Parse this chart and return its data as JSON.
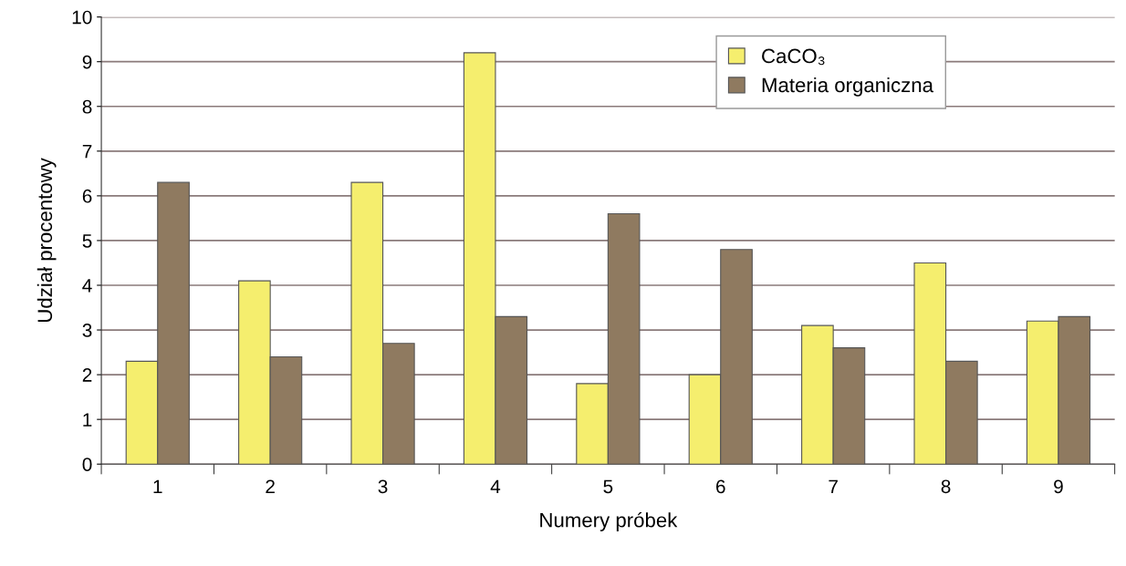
{
  "chart_data": {
    "type": "bar",
    "xlabel": "Numery próbek",
    "ylabel": "Udział procentowy",
    "categories": [
      "1",
      "2",
      "3",
      "4",
      "5",
      "6",
      "7",
      "8",
      "9"
    ],
    "series": [
      {
        "name": "CaCO₃",
        "color": "#f5ee6e",
        "values": [
          2.3,
          4.1,
          6.3,
          9.2,
          1.8,
          2.0,
          3.1,
          4.5,
          3.2
        ]
      },
      {
        "name": "Materia organiczna",
        "color": "#8f7a60",
        "values": [
          6.3,
          2.4,
          2.7,
          3.3,
          5.6,
          4.8,
          2.6,
          2.3,
          3.3
        ]
      }
    ],
    "ylim": [
      0,
      10
    ],
    "yticks": [
      0,
      1,
      2,
      3,
      4,
      5,
      6,
      7,
      8,
      9,
      10
    ],
    "grid": "y",
    "legend": "top"
  }
}
